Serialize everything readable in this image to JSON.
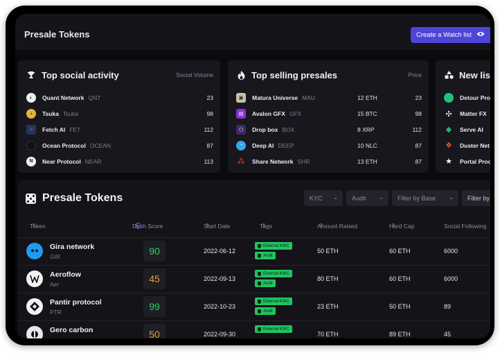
{
  "header": {
    "title": "Presale Tokens",
    "watch_button": "Create a Watch list",
    "eye_icon": "eye-icon"
  },
  "social": {
    "title": "Top social activity",
    "right_label": "Social Volume",
    "icon": "trophy-icon",
    "items": [
      {
        "name": "Quant Network",
        "symbol": "QNT",
        "value": "23",
        "icon_color": "#f0f0f0"
      },
      {
        "name": "Tsuka",
        "symbol": "Tsuka",
        "value": "98",
        "icon_color": "#e0b43c"
      },
      {
        "name": "Fetch AI",
        "symbol": "FET",
        "value": "112",
        "icon_color": "#28325e"
      },
      {
        "name": "Ocean Protocol",
        "symbol": "OCEAN",
        "value": "87",
        "icon_color": "#111111"
      },
      {
        "name": "Near Protocol",
        "symbol": "NEAR",
        "value": "113",
        "icon_color": "#f0f0f0"
      }
    ]
  },
  "selling": {
    "title": "Top selling presales",
    "right_label": "Price",
    "icon": "flame-icon",
    "items": [
      {
        "name": "Matura Universe",
        "symbol": "MAU",
        "amount": "12 ETH",
        "value": "23",
        "icon_color": "#c9c2a8"
      },
      {
        "name": "Avalon GFX",
        "symbol": "GFX",
        "amount": "15 BTC",
        "value": "98",
        "icon_color": "#8a32d8"
      },
      {
        "name": "Drop box",
        "symbol": "BOX",
        "amount": "8 XRP",
        "value": "112",
        "icon_color": "#3a2a6a"
      },
      {
        "name": "Deep AI",
        "symbol": "DEEP",
        "amount": "10 NLC",
        "value": "87",
        "icon_color": "#35a8e8"
      },
      {
        "name": "Share Network",
        "symbol": "SHR",
        "amount": "13 ETH",
        "value": "87",
        "icon_color": "#e8402c"
      }
    ]
  },
  "new_listings": {
    "title": "New lis",
    "icon": "shapes-icon",
    "items": [
      {
        "name": "Detour Pro",
        "icon_color": "#20c27a"
      },
      {
        "name": "Matter FX",
        "icon_color": "#e8e8e8"
      },
      {
        "name": "Serve AI",
        "icon_color": "#22b573"
      },
      {
        "name": "Duster Net",
        "icon_color": "#e8532c"
      },
      {
        "name": "Portal Proc",
        "icon_color": "#ffffff"
      }
    ]
  },
  "table": {
    "title": "Presale Tokens",
    "filters": [
      "KYC",
      "Audit",
      "Filter by Base",
      "Filter by"
    ],
    "columns": [
      "Token",
      "Dash Score",
      "Start Date",
      "Tags",
      "Amount Raised",
      "Hard Cap",
      "Social Following"
    ],
    "rows": [
      {
        "name": "Gira network",
        "symbol": "GIR",
        "score": "90",
        "score_color": "green",
        "date": "2022-06-12",
        "tags": [
          "External KWC",
          "Audit"
        ],
        "raised": "50 ETH",
        "cap": "60 ETH",
        "social": "6000"
      },
      {
        "name": "Aeroflow",
        "symbol": "Aer",
        "score": "45",
        "score_color": "orange",
        "date": "2022-09-13",
        "tags": [
          "External KWC",
          "Audit"
        ],
        "raised": "80 ETH",
        "cap": "60 ETH",
        "social": "6000"
      },
      {
        "name": "Pantir protocol",
        "symbol": "PTR",
        "score": "99",
        "score_color": "green",
        "date": "2022-10-23",
        "tags": [
          "External KWC",
          "Audit"
        ],
        "raised": "23 ETH",
        "cap": "50 ETH",
        "social": "89"
      },
      {
        "name": "Gero carbon",
        "symbol": "",
        "score": "50",
        "score_color": "orange",
        "date": "2022-09-30",
        "tags": [
          "External KWC"
        ],
        "raised": "70 ETH",
        "cap": "89 ETH",
        "social": "45"
      }
    ]
  },
  "colors": {
    "accent": "#4e45d8",
    "green": "#2fd36b",
    "orange": "#e0a040",
    "tag": "#21c463"
  }
}
